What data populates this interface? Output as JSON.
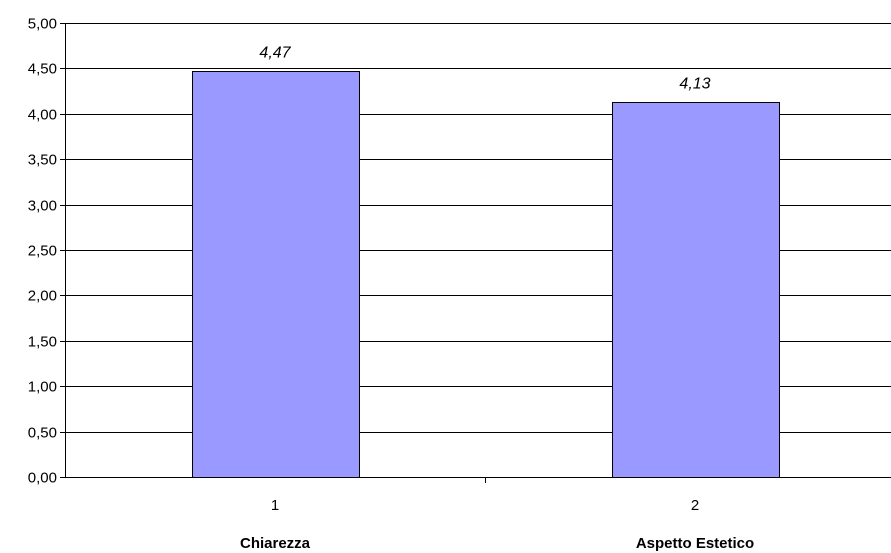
{
  "chart_data": {
    "type": "bar",
    "categories": [
      "1",
      "2"
    ],
    "category_names": [
      "Chiarezza",
      "Aspetto Estetico"
    ],
    "values": [
      4.47,
      4.13
    ],
    "data_labels": [
      "4,47",
      "4,13"
    ],
    "ylim": [
      0,
      5
    ],
    "y_ticks": [
      "0,00",
      "0,50",
      "1,00",
      "1,50",
      "2,00",
      "2,50",
      "3,00",
      "3,50",
      "4,00",
      "4,50",
      "5,00"
    ],
    "grid": true,
    "legend": "none",
    "bar_color": "#9999ff",
    "bar_outline_color": "#000000",
    "gridline_color": "#000000"
  }
}
